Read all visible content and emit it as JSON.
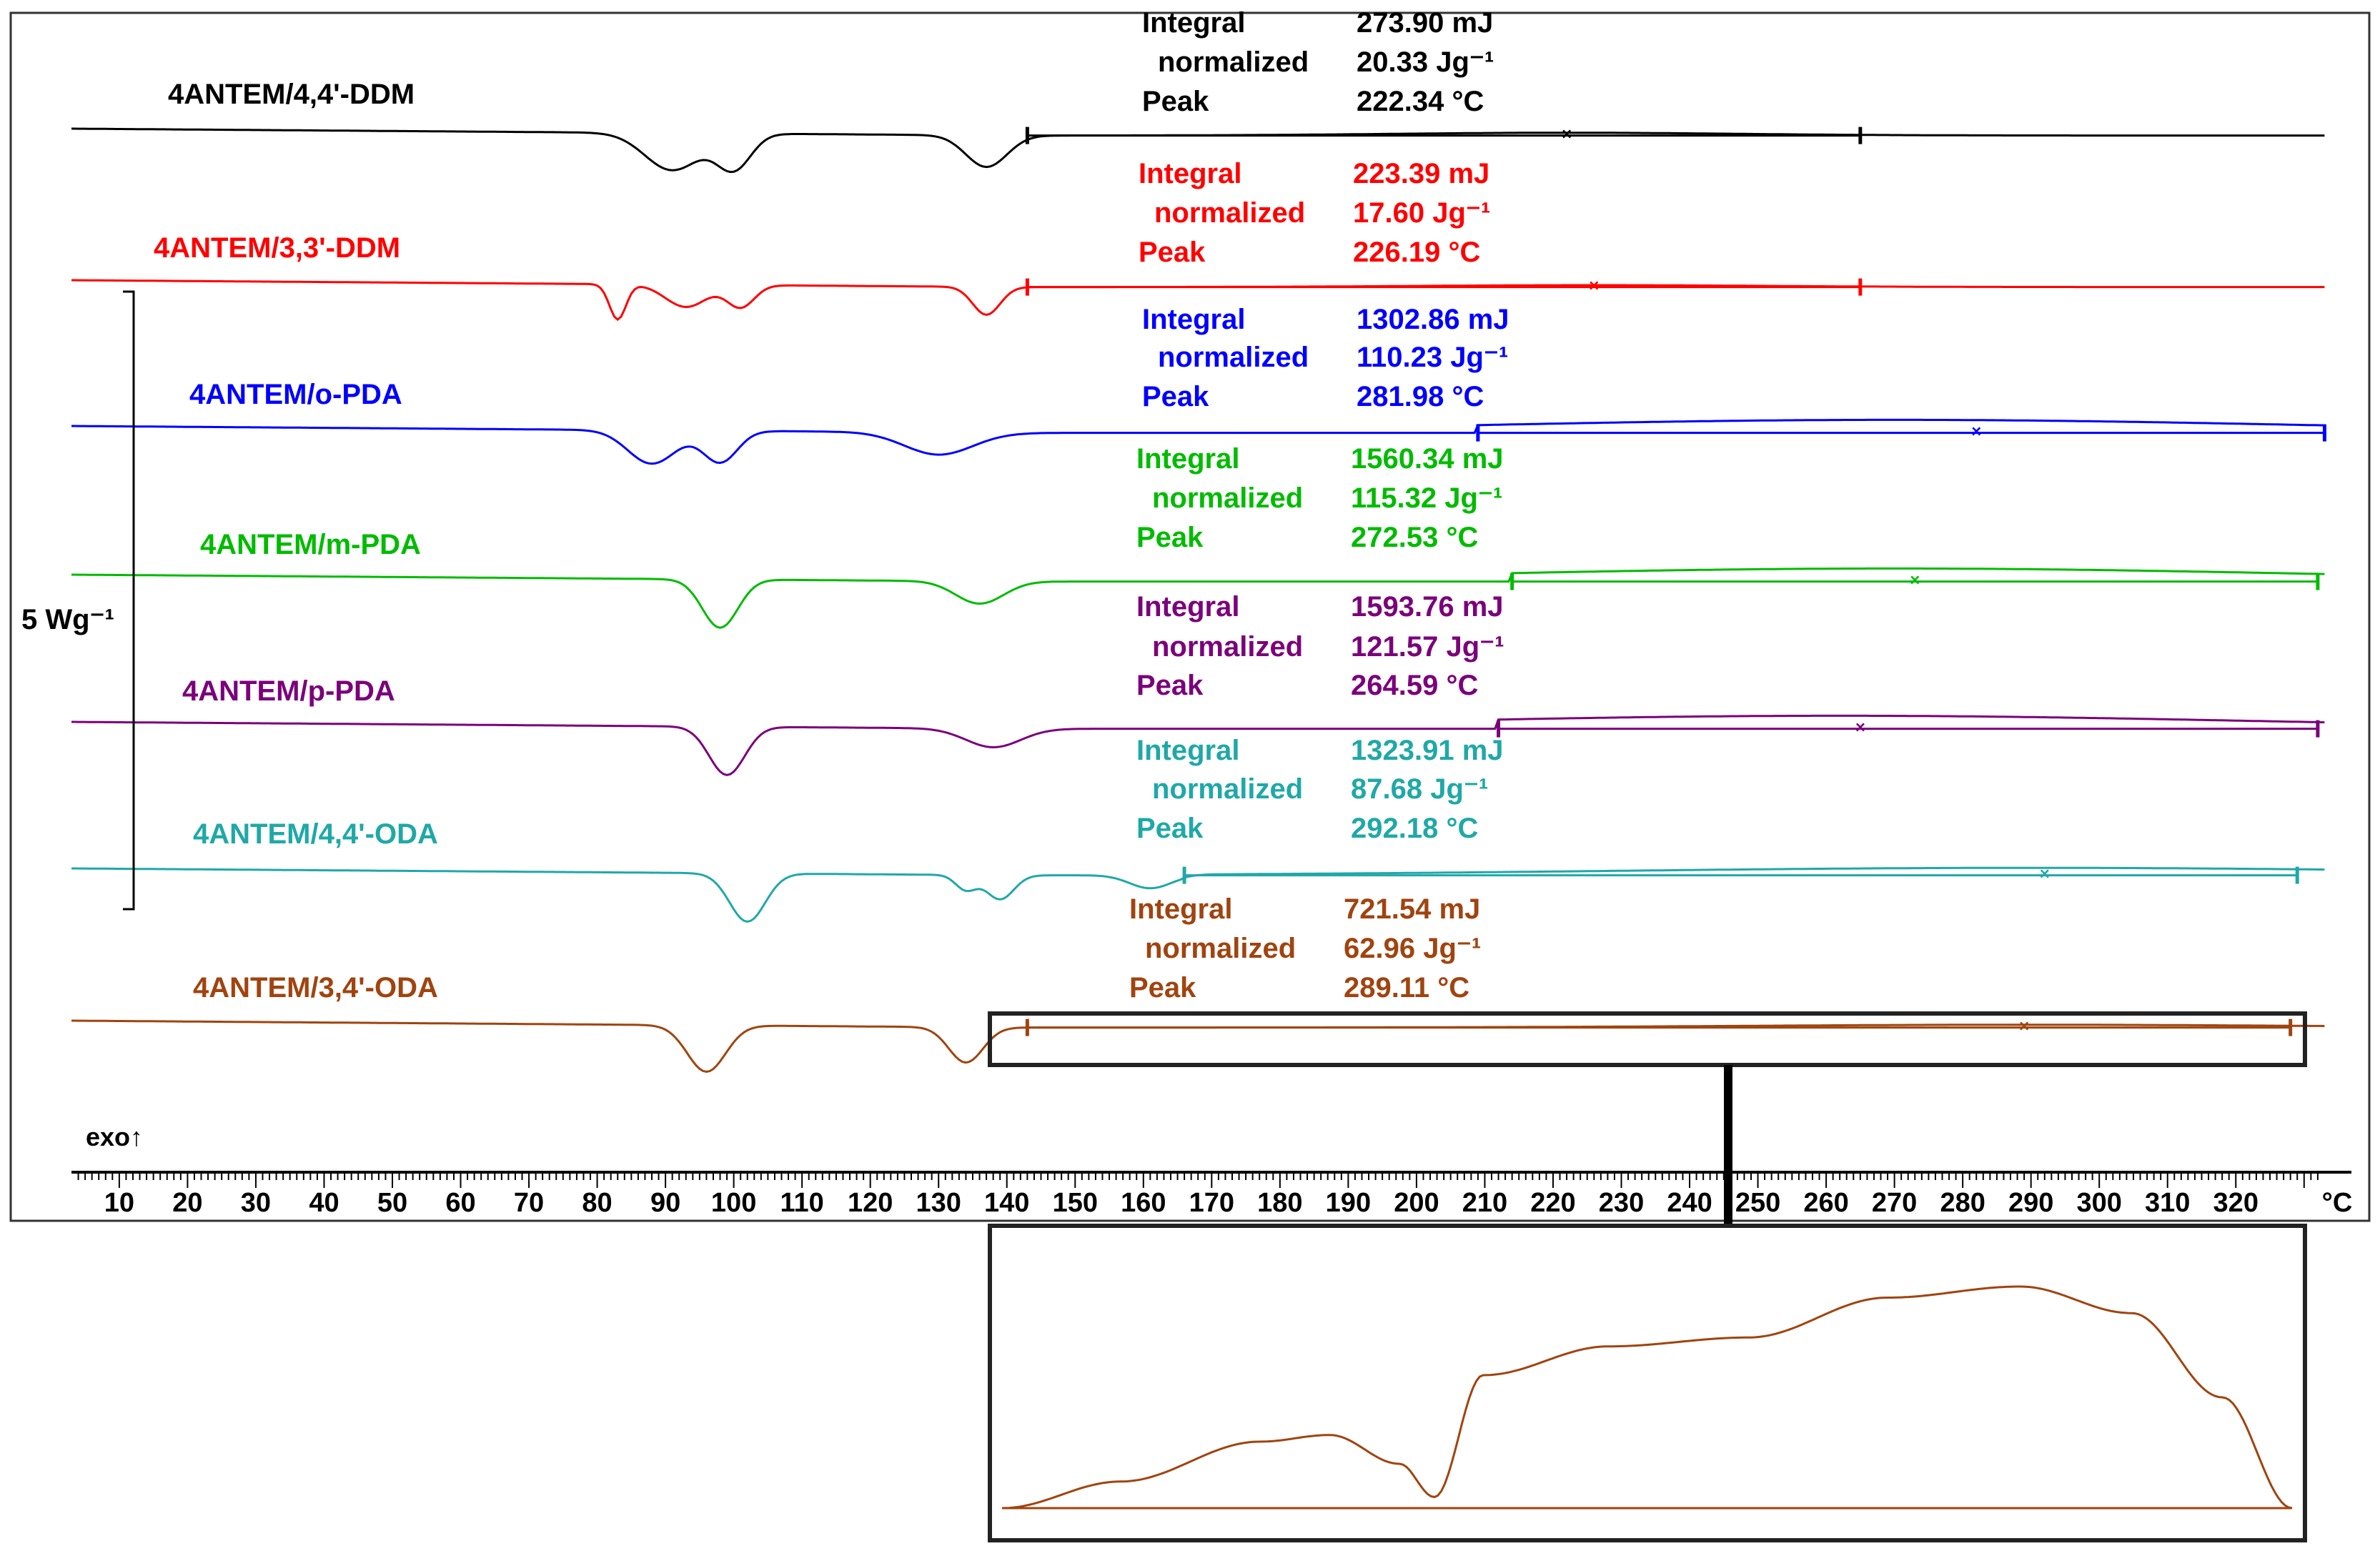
{
  "chart_data": {
    "type": "line",
    "title": "",
    "xlabel": "°C",
    "ylabel": "",
    "xlim": [
      3,
      334
    ],
    "x_ticks": [
      10,
      20,
      30,
      40,
      50,
      60,
      70,
      80,
      90,
      100,
      110,
      120,
      130,
      140,
      150,
      160,
      170,
      180,
      190,
      200,
      210,
      220,
      230,
      240,
      250,
      260,
      270,
      280,
      290,
      300,
      310,
      320
    ],
    "x_unit_label": "°C",
    "exo_label": "exo↑",
    "scale_bar_label": "5 Wg⁻¹",
    "legend_fields": {
      "integral": "Integral",
      "normalized": "normalized",
      "peak": "Peak"
    },
    "series": [
      {
        "name": "4ANTEM/4,4'-DDM",
        "color": "#000000",
        "baseline": 0.0,
        "integral": "273.90 mJ",
        "normalized": "20.33 Jg⁻¹",
        "peak": "222.34 °C",
        "integration_start": 143,
        "integration_end": 265,
        "peak_x": 222,
        "dips": [
          [
            91,
            2.0,
            4
          ],
          [
            100,
            1.9,
            2.5
          ],
          [
            137,
            1.7,
            3
          ]
        ],
        "exo_bump": [
          [
            222,
            0.15,
            25
          ]
        ]
      },
      {
        "name": "4ANTEM/3,3'-DDM",
        "color": "#ff0000",
        "baseline": 0.0,
        "integral": "223.39 mJ",
        "normalized": "17.60 Jg⁻¹",
        "peak": "226.19 °C",
        "integration_start": 143,
        "integration_end": 265,
        "peak_x": 226,
        "dips": [
          [
            83,
            1.9,
            1.2
          ],
          [
            93,
            1.2,
            3
          ],
          [
            101,
            1.2,
            2
          ],
          [
            137,
            1.5,
            2
          ]
        ],
        "exo_bump": [
          [
            226,
            0.1,
            25
          ]
        ]
      },
      {
        "name": "4ANTEM/o-PDA",
        "color": "#0000ff",
        "baseline": 0.0,
        "integral": "1302.86 mJ",
        "normalized": "110.23 Jg⁻¹",
        "peak": "281.98 °C",
        "integration_start": 209,
        "integration_end": 333,
        "peak_x": 282,
        "dips": [
          [
            88,
            1.8,
            3.5
          ],
          [
            98,
            1.7,
            2.5
          ],
          [
            130,
            1.2,
            5
          ]
        ],
        "exo_bump": [
          [
            270,
            0.7,
            60
          ]
        ]
      },
      {
        "name": "4ANTEM/m-PDA",
        "color": "#00bb00",
        "baseline": 0.0,
        "integral": "1560.34 mJ",
        "normalized": "115.32 Jg⁻¹",
        "peak": "272.53 °C",
        "integration_start": 214,
        "integration_end": 332,
        "peak_x": 273,
        "dips": [
          [
            98,
            2.6,
            2.6
          ],
          [
            136,
            1.2,
            3.5
          ]
        ],
        "exo_bump": [
          [
            270,
            0.7,
            60
          ]
        ]
      },
      {
        "name": "4ANTEM/p-PDA",
        "color": "#7b007b",
        "baseline": 0.0,
        "integral": "1593.76 mJ",
        "normalized": "121.57 Jg⁻¹",
        "peak": "264.59 °C",
        "integration_start": 212,
        "integration_end": 332,
        "peak_x": 265,
        "dips": [
          [
            99,
            2.6,
            2.6
          ],
          [
            138,
            1.0,
            4
          ]
        ],
        "exo_bump": [
          [
            262,
            0.7,
            60
          ]
        ]
      },
      {
        "name": "4ANTEM/4,4'-ODA",
        "color": "#20a8a8",
        "baseline": 0.0,
        "integral": "1323.91 mJ",
        "normalized": "87.68 Jg⁻¹",
        "peak": "292.18 °C",
        "integration_start": 166,
        "integration_end": 329,
        "peak_x": 292,
        "dips": [
          [
            102,
            2.6,
            2.6
          ],
          [
            134,
            0.8,
            1.5
          ],
          [
            139,
            1.3,
            2
          ],
          [
            161,
            0.7,
            3
          ]
        ],
        "exo_bump": [
          [
            290,
            0.4,
            60
          ]
        ]
      },
      {
        "name": "4ANTEM/3,4'-ODA",
        "color": "#a0440f",
        "baseline": 0.0,
        "integral": "721.54 mJ",
        "normalized": "62.96 Jg⁻¹",
        "peak": "289.11 °C",
        "integration_start": 143,
        "integration_end": 328,
        "peak_x": 289,
        "dips": [
          [
            96,
            2.5,
            2.8
          ],
          [
            134,
            1.9,
            2.5
          ]
        ],
        "exo_bump": [
          [
            289,
            0.15,
            40
          ]
        ]
      }
    ],
    "inset": {
      "series": "4ANTEM/3,4'-ODA",
      "x_range": [
        143,
        328
      ],
      "profile_x": [
        143,
        160,
        180,
        190,
        200,
        205,
        212,
        230,
        250,
        270,
        289,
        305,
        318,
        328
      ],
      "profile_y": [
        0.0,
        0.12,
        0.3,
        0.33,
        0.2,
        0.05,
        0.6,
        0.73,
        0.77,
        0.95,
        1.0,
        0.88,
        0.5,
        0.0
      ]
    }
  }
}
